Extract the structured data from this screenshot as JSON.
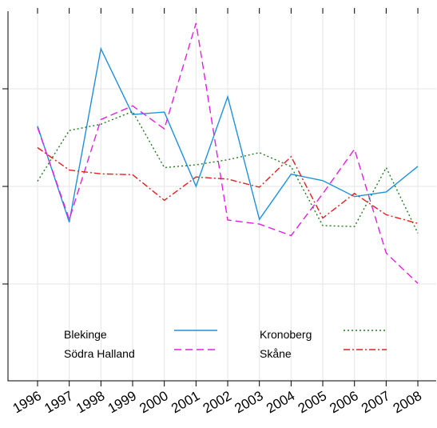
{
  "chart_data": {
    "type": "line",
    "title": "",
    "xlabel": "",
    "ylabel": "",
    "x": [
      "1996",
      "1997",
      "1998",
      "1999",
      "2000",
      "2001",
      "2002",
      "2003",
      "2004",
      "2005",
      "2006",
      "2007",
      "2008"
    ],
    "ylim": [
      0.0,
      1.0
    ],
    "grid": true,
    "legend": "bottom-inside",
    "series": [
      {
        "name": "Blekinge",
        "color": "#1e90dc",
        "dash": "solid",
        "values": [
          0.66,
          0.352,
          0.908,
          0.697,
          0.705,
          0.467,
          0.754,
          0.361,
          0.506,
          0.485,
          0.434,
          0.449,
          0.531
        ]
      },
      {
        "name": "Södra Halland",
        "color": "#e020e0",
        "dash": "dashed",
        "values": [
          0.656,
          0.361,
          0.681,
          0.725,
          0.651,
          0.99,
          0.359,
          0.346,
          0.309,
          0.443,
          0.586,
          0.253,
          0.156
        ]
      },
      {
        "name": "Kronoberg",
        "color": "#207a20",
        "dash": "dotted",
        "values": [
          0.483,
          0.646,
          0.666,
          0.707,
          0.527,
          0.536,
          0.552,
          0.575,
          0.53,
          0.341,
          0.338,
          0.527,
          0.317
        ]
      },
      {
        "name": "Skåne",
        "color": "#e02020",
        "dash": "dashdot",
        "values": [
          0.591,
          0.519,
          0.507,
          0.504,
          0.422,
          0.497,
          0.49,
          0.464,
          0.562,
          0.365,
          0.444,
          0.376,
          0.348
        ]
      }
    ]
  }
}
